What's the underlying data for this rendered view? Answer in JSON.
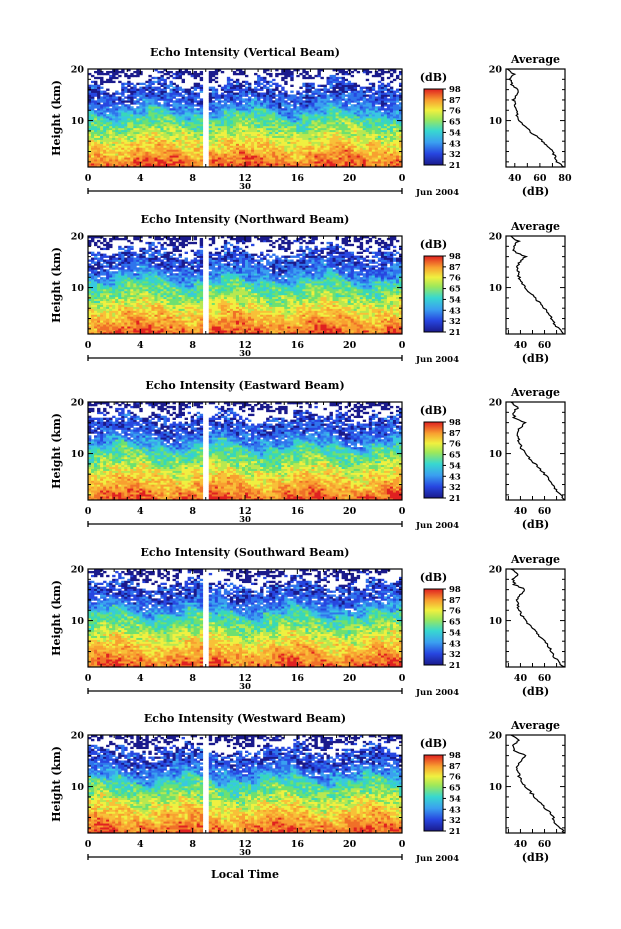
{
  "xlabel_bottom": "Local Time",
  "colorbar": {
    "label": "(dB)",
    "ticks": [
      "98",
      "87",
      "76",
      "65",
      "54",
      "43",
      "32",
      "21"
    ],
    "min": 21,
    "max": 98
  },
  "date_label": "Jun 2004",
  "day_label": "30",
  "chart_data": [
    {
      "type": "heatmap",
      "title": "Echo Intensity (Vertical Beam)",
      "ylabel": "Height (km)",
      "xlim": [
        0,
        24
      ],
      "ylim": [
        1,
        20
      ],
      "xticks": [
        "0",
        "4",
        "8",
        "12",
        "16",
        "20",
        "0"
      ],
      "yticks": [
        "20",
        "10"
      ],
      "avg_title": "Average",
      "avg_xlabel": "(dB)",
      "avg_xticks": [
        "40",
        "60",
        "80"
      ],
      "avg_xlim": [
        33,
        80
      ],
      "avg_heights": [
        1,
        2,
        3,
        4,
        5,
        6,
        7,
        8,
        9,
        10,
        11,
        12,
        13,
        14,
        15,
        16,
        17,
        18,
        19,
        20
      ],
      "avg_values": [
        80,
        74,
        72,
        70,
        66,
        62,
        57,
        52,
        48,
        44,
        42,
        41,
        40,
        39,
        41,
        43,
        38,
        36,
        39,
        34
      ]
    },
    {
      "type": "heatmap",
      "title": "Echo Intensity (Northward Beam)",
      "ylabel": "Height (km)",
      "xlim": [
        0,
        24
      ],
      "ylim": [
        1,
        20
      ],
      "xticks": [
        "0",
        "4",
        "8",
        "12",
        "16",
        "20",
        "0"
      ],
      "yticks": [
        "20",
        "10"
      ],
      "avg_title": "Average",
      "avg_xlabel": "(dB)",
      "avg_xticks": [
        "40",
        "60"
      ],
      "avg_xlim": [
        28,
        77
      ],
      "avg_heights": [
        1,
        2,
        3,
        4,
        5,
        6,
        7,
        8,
        9,
        10,
        11,
        12,
        13,
        14,
        15,
        16,
        17,
        18,
        19,
        20
      ],
      "avg_values": [
        76,
        72,
        68,
        66,
        64,
        60,
        56,
        52,
        48,
        44,
        41,
        39,
        38,
        37,
        40,
        44,
        35,
        34,
        38,
        32
      ]
    },
    {
      "type": "heatmap",
      "title": "Echo Intensity (Eastward Beam)",
      "ylabel": "Height (km)",
      "xlim": [
        0,
        24
      ],
      "ylim": [
        1,
        20
      ],
      "xticks": [
        "0",
        "4",
        "8",
        "12",
        "16",
        "20",
        "0"
      ],
      "yticks": [
        "20",
        "10"
      ],
      "avg_title": "Average",
      "avg_xlabel": "(dB)",
      "avg_xticks": [
        "40",
        "60"
      ],
      "avg_xlim": [
        28,
        77
      ],
      "avg_heights": [
        1,
        2,
        3,
        4,
        5,
        6,
        7,
        8,
        9,
        10,
        11,
        12,
        13,
        14,
        15,
        16,
        17,
        18,
        19,
        20
      ],
      "avg_values": [
        77,
        73,
        69,
        67,
        64,
        60,
        56,
        52,
        48,
        44,
        41,
        39,
        38,
        37,
        40,
        44,
        35,
        34,
        38,
        32
      ]
    },
    {
      "type": "heatmap",
      "title": "Echo Intensity (Southward Beam)",
      "ylabel": "Height (km)",
      "xlim": [
        0,
        24
      ],
      "ylim": [
        1,
        20
      ],
      "xticks": [
        "0",
        "4",
        "8",
        "12",
        "16",
        "20",
        "0"
      ],
      "yticks": [
        "20",
        "10"
      ],
      "avg_title": "Average",
      "avg_xlabel": "(dB)",
      "avg_xticks": [
        "40",
        "60"
      ],
      "avg_xlim": [
        28,
        77
      ],
      "avg_heights": [
        1,
        2,
        3,
        4,
        5,
        6,
        7,
        8,
        9,
        10,
        11,
        12,
        13,
        14,
        15,
        16,
        17,
        18,
        19,
        20
      ],
      "avg_values": [
        76,
        72,
        68,
        66,
        63,
        60,
        56,
        52,
        48,
        44,
        41,
        39,
        38,
        37,
        40,
        44,
        35,
        34,
        38,
        32
      ]
    },
    {
      "type": "heatmap",
      "title": "Echo Intensity (Westward Beam)",
      "ylabel": "Height (km)",
      "xlim": [
        0,
        24
      ],
      "ylim": [
        1,
        20
      ],
      "xticks": [
        "0",
        "4",
        "8",
        "12",
        "16",
        "20",
        "0"
      ],
      "yticks": [
        "20",
        "10"
      ],
      "avg_title": "Average",
      "avg_xlabel": "(dB)",
      "avg_xticks": [
        "40",
        "60"
      ],
      "avg_xlim": [
        28,
        77
      ],
      "avg_heights": [
        1,
        2,
        3,
        4,
        5,
        6,
        7,
        8,
        9,
        10,
        11,
        12,
        13,
        14,
        15,
        16,
        17,
        18,
        19,
        20
      ],
      "avg_values": [
        77,
        73,
        69,
        67,
        64,
        60,
        56,
        52,
        48,
        44,
        41,
        39,
        38,
        37,
        40,
        44,
        35,
        34,
        38,
        32
      ]
    }
  ]
}
